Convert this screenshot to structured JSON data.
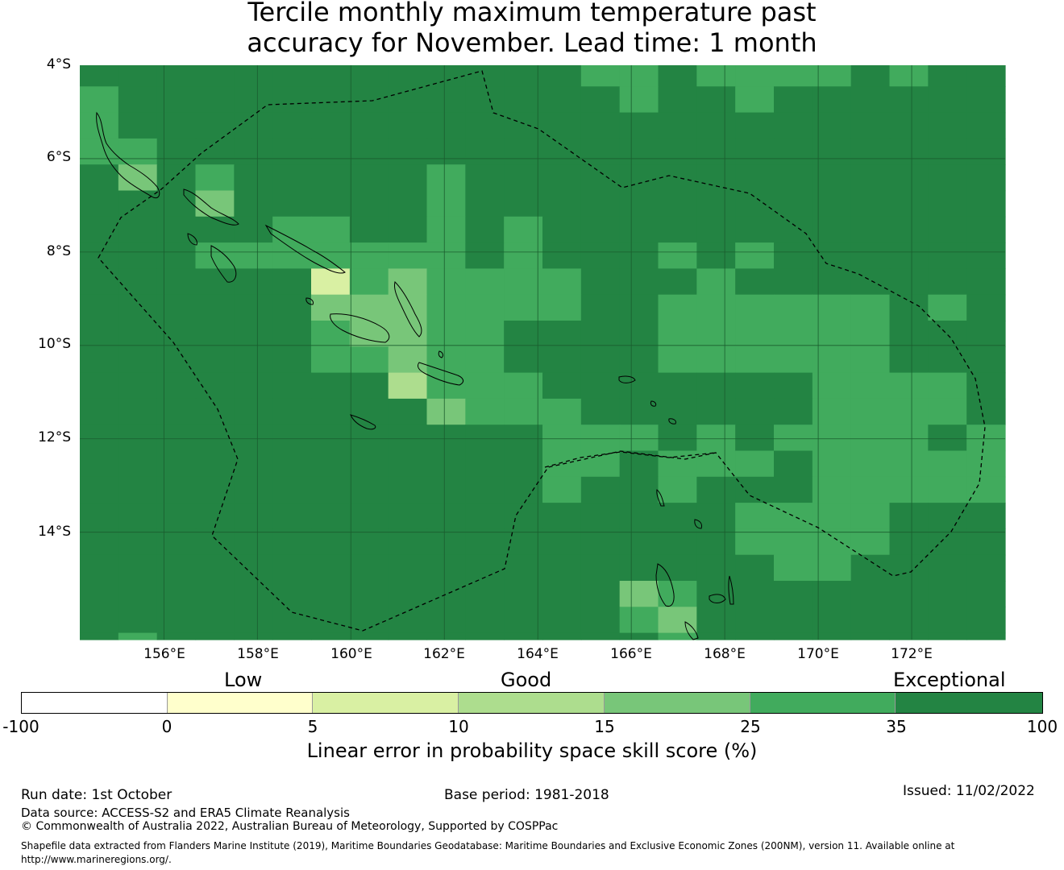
{
  "title": {
    "line1": "Tercile monthly maximum temperature past",
    "line2": "accuracy for November. Lead time: 1 month"
  },
  "map": {
    "lat_labels": [
      "4°S",
      "6°S",
      "8°S",
      "10°S",
      "12°S",
      "14°S"
    ],
    "lon_labels": [
      "156°E",
      "158°E",
      "160°E",
      "162°E",
      "164°E",
      "166°E",
      "168°E",
      "170°E",
      "172°E"
    ],
    "extent": {
      "lon_min": 154.2,
      "lon_max": 174.0,
      "lat_north": -4.0,
      "lat_south": -16.3
    },
    "grid_spacing_deg": 2,
    "cell_size_deg": 0.83,
    "default_class": 6,
    "class_overrides": [
      [
        0,
        13,
        5
      ],
      [
        0,
        14,
        5
      ],
      [
        0,
        16,
        5
      ],
      [
        0,
        17,
        5
      ],
      [
        0,
        18,
        5
      ],
      [
        0,
        19,
        5
      ],
      [
        0,
        21,
        5
      ],
      [
        1,
        0,
        5
      ],
      [
        1,
        14,
        5
      ],
      [
        1,
        17,
        5
      ],
      [
        2,
        0,
        5
      ],
      [
        3,
        0,
        5
      ],
      [
        3,
        1,
        5
      ],
      [
        4,
        1,
        4
      ],
      [
        4,
        3,
        5
      ],
      [
        4,
        9,
        5
      ],
      [
        5,
        3,
        4
      ],
      [
        5,
        9,
        5
      ],
      [
        6,
        5,
        5
      ],
      [
        6,
        6,
        5
      ],
      [
        6,
        9,
        5
      ],
      [
        6,
        11,
        5
      ],
      [
        7,
        3,
        5
      ],
      [
        7,
        4,
        5
      ],
      [
        7,
        5,
        5
      ],
      [
        7,
        6,
        5
      ],
      [
        7,
        7,
        5
      ],
      [
        7,
        8,
        5
      ],
      [
        7,
        9,
        5
      ],
      [
        7,
        11,
        5
      ],
      [
        7,
        15,
        5
      ],
      [
        7,
        17,
        5
      ],
      [
        8,
        6,
        2
      ],
      [
        8,
        7,
        5
      ],
      [
        8,
        8,
        4
      ],
      [
        8,
        9,
        5
      ],
      [
        8,
        10,
        5
      ],
      [
        8,
        11,
        5
      ],
      [
        8,
        12,
        5
      ],
      [
        8,
        16,
        5
      ],
      [
        9,
        6,
        4
      ],
      [
        9,
        7,
        4
      ],
      [
        9,
        8,
        4
      ],
      [
        9,
        9,
        5
      ],
      [
        9,
        10,
        5
      ],
      [
        9,
        11,
        5
      ],
      [
        9,
        12,
        5
      ],
      [
        9,
        15,
        5
      ],
      [
        9,
        16,
        5
      ],
      [
        9,
        17,
        5
      ],
      [
        9,
        18,
        5
      ],
      [
        9,
        19,
        5
      ],
      [
        9,
        20,
        5
      ],
      [
        9,
        22,
        5
      ],
      [
        10,
        6,
        5
      ],
      [
        10,
        7,
        4
      ],
      [
        10,
        8,
        4
      ],
      [
        10,
        9,
        5
      ],
      [
        10,
        10,
        5
      ],
      [
        10,
        15,
        5
      ],
      [
        10,
        16,
        5
      ],
      [
        10,
        17,
        5
      ],
      [
        10,
        18,
        5
      ],
      [
        10,
        19,
        5
      ],
      [
        10,
        20,
        5
      ],
      [
        11,
        6,
        5
      ],
      [
        11,
        7,
        5
      ],
      [
        11,
        8,
        4
      ],
      [
        11,
        9,
        5
      ],
      [
        11,
        10,
        5
      ],
      [
        11,
        15,
        5
      ],
      [
        11,
        16,
        5
      ],
      [
        11,
        17,
        5
      ],
      [
        11,
        18,
        5
      ],
      [
        11,
        19,
        5
      ],
      [
        11,
        20,
        5
      ],
      [
        12,
        8,
        3
      ],
      [
        12,
        9,
        5
      ],
      [
        12,
        10,
        5
      ],
      [
        12,
        11,
        5
      ],
      [
        12,
        19,
        5
      ],
      [
        12,
        20,
        5
      ],
      [
        12,
        21,
        5
      ],
      [
        12,
        22,
        5
      ],
      [
        13,
        9,
        4
      ],
      [
        13,
        10,
        5
      ],
      [
        13,
        11,
        5
      ],
      [
        13,
        12,
        5
      ],
      [
        13,
        19,
        5
      ],
      [
        13,
        20,
        5
      ],
      [
        13,
        21,
        5
      ],
      [
        13,
        22,
        5
      ],
      [
        14,
        12,
        5
      ],
      [
        14,
        13,
        5
      ],
      [
        14,
        14,
        5
      ],
      [
        14,
        16,
        5
      ],
      [
        14,
        18,
        5
      ],
      [
        14,
        19,
        5
      ],
      [
        14,
        20,
        5
      ],
      [
        14,
        21,
        5
      ],
      [
        14,
        23,
        5
      ],
      [
        15,
        12,
        5
      ],
      [
        15,
        13,
        5
      ],
      [
        15,
        15,
        5
      ],
      [
        15,
        16,
        5
      ],
      [
        15,
        17,
        5
      ],
      [
        15,
        19,
        5
      ],
      [
        15,
        20,
        5
      ],
      [
        15,
        21,
        5
      ],
      [
        15,
        22,
        5
      ],
      [
        15,
        23,
        5
      ],
      [
        16,
        12,
        5
      ],
      [
        16,
        15,
        5
      ],
      [
        16,
        19,
        5
      ],
      [
        16,
        20,
        5
      ],
      [
        16,
        21,
        5
      ],
      [
        16,
        22,
        5
      ],
      [
        16,
        23,
        5
      ],
      [
        17,
        17,
        5
      ],
      [
        17,
        18,
        5
      ],
      [
        17,
        19,
        5
      ],
      [
        17,
        20,
        5
      ],
      [
        18,
        17,
        5
      ],
      [
        18,
        18,
        5
      ],
      [
        18,
        19,
        5
      ],
      [
        18,
        20,
        5
      ],
      [
        19,
        18,
        5
      ],
      [
        19,
        19,
        5
      ],
      [
        20,
        14,
        4
      ],
      [
        20,
        15,
        5
      ],
      [
        21,
        14,
        5
      ],
      [
        21,
        15,
        4
      ],
      [
        22,
        1,
        5
      ],
      [
        22,
        15,
        5
      ],
      [
        23,
        1,
        5
      ],
      [
        23,
        15,
        5
      ],
      [
        23,
        16,
        5
      ]
    ]
  },
  "colorbar": {
    "category_labels": {
      "low": "Low",
      "good": "Good",
      "exceptional": "Exceptional"
    },
    "ticks": [
      "-100",
      "0",
      "5",
      "10",
      "15",
      "25",
      "35",
      "100"
    ],
    "colors": [
      "#ffffff",
      "#ffffcc",
      "#d9f0a3",
      "#addd8e",
      "#78c679",
      "#41ab5d",
      "#238443"
    ],
    "title": "Linear error in probability space skill score (%)"
  },
  "footer": {
    "run_date": "Run date: 1st October",
    "base_period": "Base period: 1981-2018",
    "issued": "Issued: 11/02/2022",
    "data_source": "Data source: ACCESS-S2 and ERA5 Climate Reanalysis",
    "copyright": "© Commonwealth of Australia 2022, Australian Bureau of Meteorology, Supported by COSPPac",
    "shapefile_line1": "Shapefile data extracted from Flanders Marine Institute (2019), Maritime Boundaries Geodatabase: Maritime Boundaries and Exclusive Economic Zones (200NM), version 11. Available online at",
    "shapefile_line2": "http://www.marineregions.org/."
  }
}
